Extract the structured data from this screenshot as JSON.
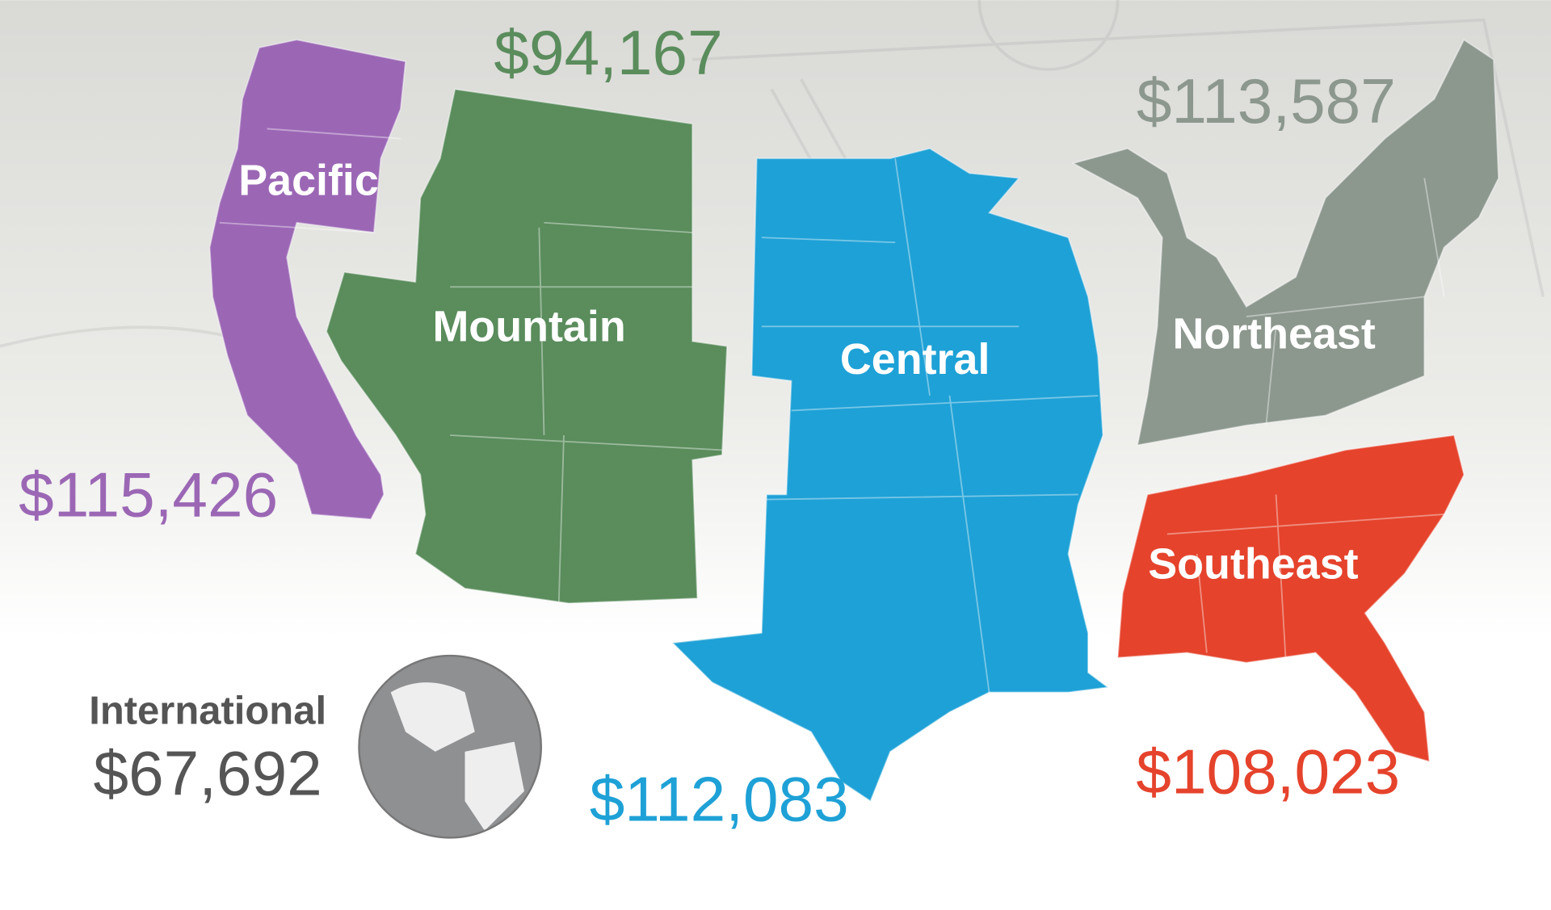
{
  "colors": {
    "pacific": "#9b67b5",
    "mountain": "#5a8c5c",
    "central": "#1ea1d6",
    "northeast": "#8c978e",
    "southeast": "#e5432c",
    "international": "#8f9092",
    "international_text": "#555555"
  },
  "regions": {
    "pacific": {
      "name": "Pacific",
      "amount": "$115,426"
    },
    "mountain": {
      "name": "Mountain",
      "amount": "$94,167"
    },
    "central": {
      "name": "Central",
      "amount": "$112,083"
    },
    "northeast": {
      "name": "Northeast",
      "amount": "$113,587"
    },
    "southeast": {
      "name": "Southeast",
      "amount": "$108,023"
    },
    "international": {
      "name": "International",
      "amount": "$67,692",
      "icon": "globe-icon"
    }
  }
}
